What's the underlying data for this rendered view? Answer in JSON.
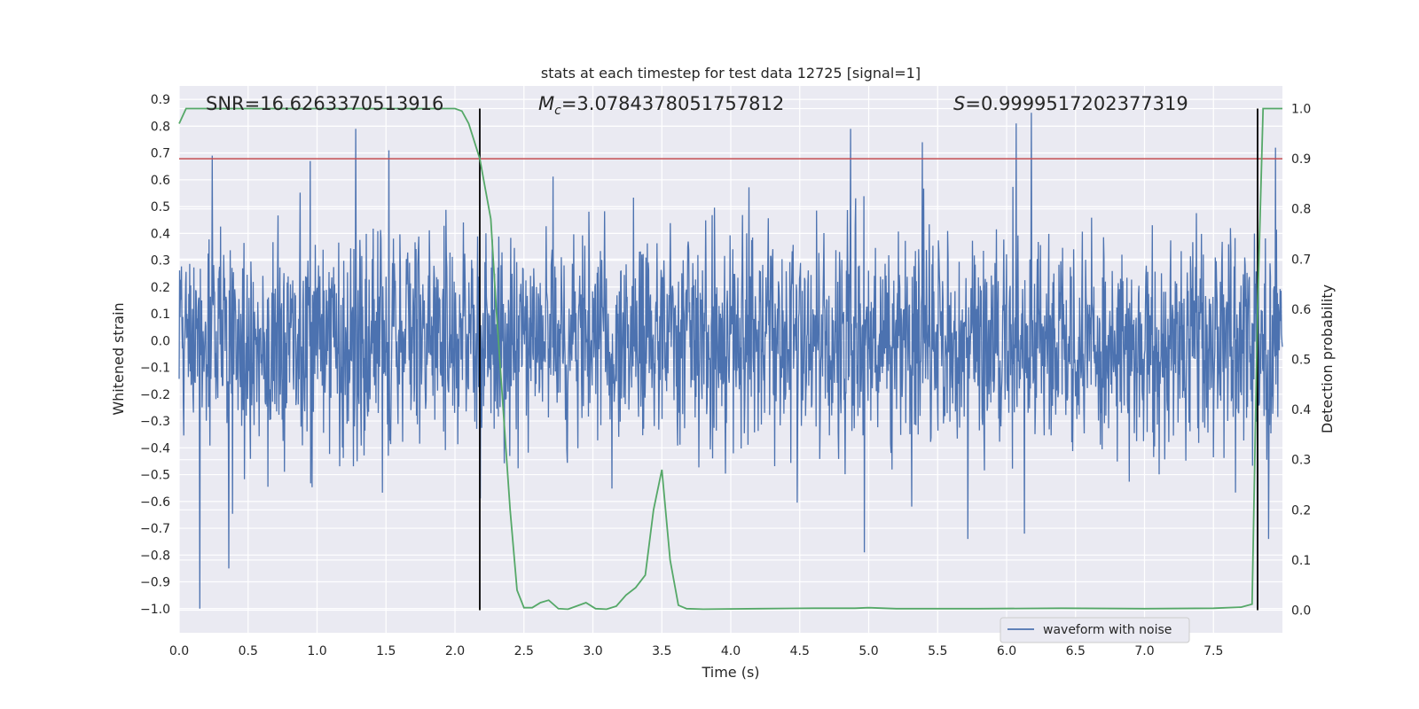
{
  "chart_data": {
    "type": "line",
    "title": "stats at each timestep for test data 12725 [signal=1]",
    "xlabel": "Time (s)",
    "ylabel_left": "Whitened strain",
    "ylabel_right": "Detection probability",
    "xlim": [
      0.0,
      8.0
    ],
    "ylim_left": [
      -1.09,
      0.95
    ],
    "ylim_right": [
      -0.045,
      1.045
    ],
    "x_ticks": [
      "0.0",
      "0.5",
      "1.0",
      "1.5",
      "2.0",
      "2.5",
      "3.0",
      "3.5",
      "4.0",
      "4.5",
      "5.0",
      "5.5",
      "6.0",
      "6.5",
      "7.0",
      "7.5"
    ],
    "x_tick_values": [
      0.0,
      0.5,
      1.0,
      1.5,
      2.0,
      2.5,
      3.0,
      3.5,
      4.0,
      4.5,
      5.0,
      5.5,
      6.0,
      6.5,
      7.0,
      7.5
    ],
    "y_left_ticks": [
      "0.9",
      "0.8",
      "0.7",
      "0.6",
      "0.5",
      "0.4",
      "0.3",
      "0.2",
      "0.1",
      "0.0",
      "−0.1",
      "−0.2",
      "−0.3",
      "−0.4",
      "−0.5",
      "−0.6",
      "−0.7",
      "−0.8",
      "−0.9",
      "−1.0"
    ],
    "y_left_tick_values": [
      0.9,
      0.8,
      0.7,
      0.6,
      0.5,
      0.4,
      0.3,
      0.2,
      0.1,
      0.0,
      -0.1,
      -0.2,
      -0.3,
      -0.4,
      -0.5,
      -0.6,
      -0.7,
      -0.8,
      -0.9,
      -1.0
    ],
    "y_right_ticks": [
      "1.0",
      "0.9",
      "0.8",
      "0.7",
      "0.6",
      "0.5",
      "0.4",
      "0.3",
      "0.2",
      "0.1",
      "0.0"
    ],
    "y_right_tick_values": [
      1.0,
      0.9,
      0.8,
      0.7,
      0.6,
      0.5,
      0.4,
      0.3,
      0.2,
      0.1,
      0.0
    ],
    "threshold": 0.9,
    "vlines": [
      2.18,
      7.82
    ],
    "annotations": {
      "snr": "SNR=16.6263370513916",
      "mc_symbol": "M",
      "mc_sub": "c",
      "mc_value": "=3.0784378051757812",
      "s_symbol": "S",
      "s_value": "=0.9999517202377319"
    },
    "waveform": {
      "name": "waveform with noise",
      "color": "#4c72b0",
      "samples": 2400,
      "seed": 12725,
      "spikes": [
        {
          "x": 0.15,
          "y": -1.0
        },
        {
          "x": 0.24,
          "y": 0.69
        },
        {
          "x": 0.36,
          "y": -0.85
        },
        {
          "x": 1.28,
          "y": 0.79
        },
        {
          "x": 1.52,
          "y": 0.71
        },
        {
          "x": 4.87,
          "y": 0.79
        },
        {
          "x": 4.97,
          "y": -0.79
        },
        {
          "x": 5.39,
          "y": 0.74
        },
        {
          "x": 5.72,
          "y": -0.74
        },
        {
          "x": 6.07,
          "y": 0.81
        },
        {
          "x": 6.18,
          "y": 0.85
        },
        {
          "x": 6.13,
          "y": -0.72
        },
        {
          "x": 7.82,
          "y": -0.73
        },
        {
          "x": 7.95,
          "y": 0.72
        },
        {
          "x": 7.9,
          "y": -0.74
        }
      ]
    },
    "probability": {
      "name": "Detection probability",
      "color": "#55a868",
      "x": [
        0.0,
        0.05,
        0.1,
        0.5,
        1.0,
        1.5,
        1.9,
        2.0,
        2.05,
        2.1,
        2.18,
        2.26,
        2.3,
        2.35,
        2.4,
        2.45,
        2.5,
        2.56,
        2.62,
        2.68,
        2.75,
        2.82,
        2.88,
        2.95,
        3.02,
        3.1,
        3.17,
        3.24,
        3.31,
        3.38,
        3.44,
        3.5,
        3.56,
        3.62,
        3.68,
        3.8,
        4.2,
        4.6,
        4.9,
        5.0,
        5.2,
        5.8,
        6.4,
        7.0,
        7.5,
        7.7,
        7.78,
        7.82,
        7.86,
        7.88,
        7.9,
        7.95,
        8.0
      ],
      "y": [
        0.97,
        1.0,
        1.0,
        1.0,
        1.0,
        1.0,
        1.0,
        1.0,
        0.995,
        0.97,
        0.9,
        0.78,
        0.6,
        0.4,
        0.2,
        0.04,
        0.005,
        0.005,
        0.015,
        0.02,
        0.003,
        0.002,
        0.008,
        0.015,
        0.003,
        0.002,
        0.008,
        0.03,
        0.045,
        0.07,
        0.2,
        0.28,
        0.1,
        0.01,
        0.003,
        0.002,
        0.003,
        0.004,
        0.004,
        0.005,
        0.003,
        0.003,
        0.004,
        0.003,
        0.004,
        0.006,
        0.012,
        0.6,
        1.0,
        1.0,
        1.0,
        1.0,
        1.0
      ]
    },
    "threshold_color": "#c44e52",
    "vline_color": "#000000",
    "legend": {
      "label": "waveform with noise",
      "position": "lower center-right"
    }
  }
}
